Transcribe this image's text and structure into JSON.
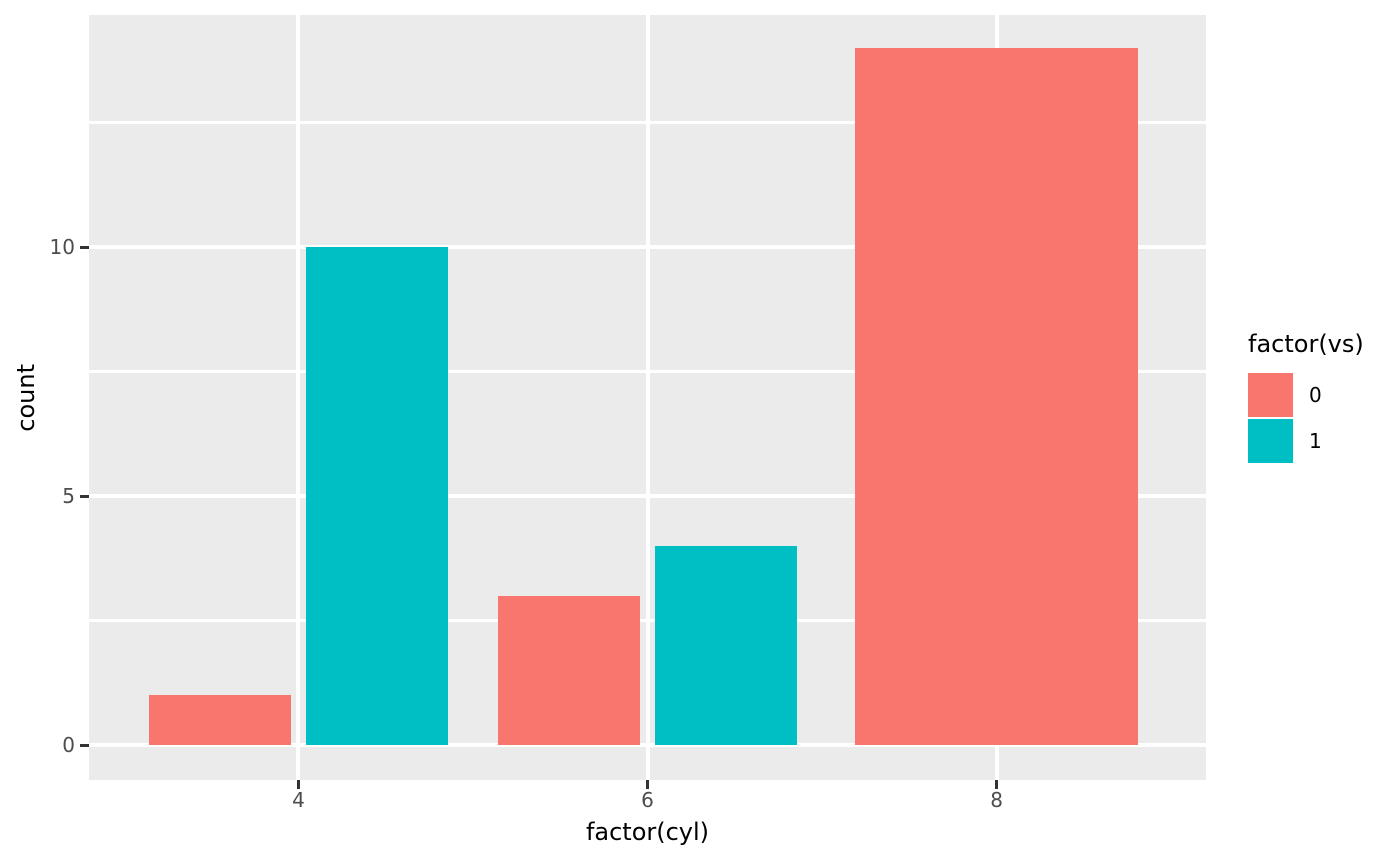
{
  "chart_data": {
    "type": "bar",
    "title": "",
    "xlabel": "factor(cyl)",
    "ylabel": "count",
    "categories": [
      "4",
      "6",
      "8"
    ],
    "series": [
      {
        "name": "0",
        "color": "#F8766D",
        "values": [
          1,
          3,
          14
        ]
      },
      {
        "name": "1",
        "color": "#00BFC4",
        "values": [
          10,
          4,
          0
        ]
      }
    ],
    "y_major_ticks": [
      0,
      5,
      10
    ],
    "y_minor_ticks": [
      2.5,
      7.5,
      12.5
    ],
    "ylim": [
      -0.7,
      14.66
    ],
    "legend": {
      "title": "factor(vs)",
      "position": "right"
    },
    "grid": true,
    "dodge": {
      "pair_bar_width": 0.405,
      "single_bar_width": 0.81,
      "pair_offset": 0.225,
      "slots": 3.2,
      "first_center": 0.6
    },
    "colors": {
      "panel_background": "#EBEBEB",
      "grid": "#FFFFFF",
      "tick_label": "#4D4D4D",
      "tick_mark": "#333333",
      "axis_title": "#000000"
    }
  }
}
